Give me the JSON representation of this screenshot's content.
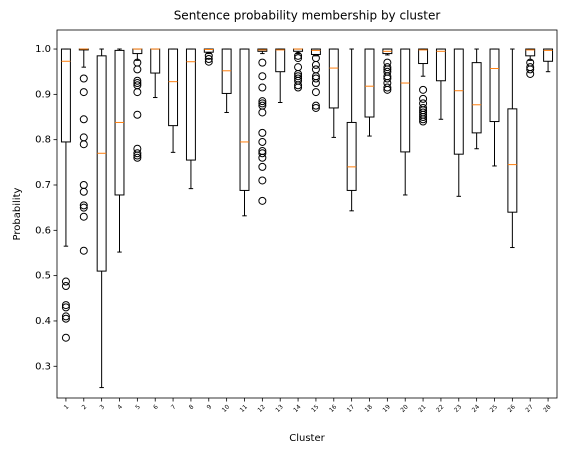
{
  "chart_data": {
    "type": "box",
    "title": "Sentence probability membership by cluster",
    "xlabel": "Cluster",
    "ylabel": "Probability",
    "categories": [
      "1",
      "2",
      "3",
      "4",
      "5",
      "6",
      "7",
      "8",
      "9",
      "10",
      "11",
      "12",
      "13",
      "14",
      "15",
      "16",
      "17",
      "18",
      "19",
      "20",
      "21",
      "22",
      "23",
      "24",
      "25",
      "26",
      "27",
      "28"
    ],
    "boxes": [
      {
        "whislo": 0.565,
        "q1": 0.795,
        "med": 0.973,
        "q3": 1.0,
        "whishi": 1.0,
        "fliers": [
          0.487,
          0.477,
          0.435,
          0.43,
          0.41,
          0.405,
          0.363
        ]
      },
      {
        "whislo": 0.96,
        "q1": 0.998,
        "med": 1.0,
        "q3": 1.0,
        "whishi": 1.0,
        "fliers": [
          0.935,
          0.905,
          0.845,
          0.805,
          0.79,
          0.7,
          0.685,
          0.655,
          0.65,
          0.63,
          0.555
        ]
      },
      {
        "whislo": 0.253,
        "q1": 0.51,
        "med": 0.77,
        "q3": 0.985,
        "whishi": 1.0,
        "fliers": []
      },
      {
        "whislo": 0.552,
        "q1": 0.678,
        "med": 0.838,
        "q3": 0.997,
        "whishi": 1.0,
        "fliers": []
      },
      {
        "whislo": 0.975,
        "q1": 0.99,
        "med": 1.0,
        "q3": 1.0,
        "whishi": 1.0,
        "fliers": [
          0.97,
          0.955,
          0.93,
          0.925,
          0.92,
          0.905,
          0.855,
          0.78,
          0.77,
          0.765,
          0.76
        ]
      },
      {
        "whislo": 0.893,
        "q1": 0.947,
        "med": 1.0,
        "q3": 1.0,
        "whishi": 1.0,
        "fliers": []
      },
      {
        "whislo": 0.772,
        "q1": 0.831,
        "med": 0.928,
        "q3": 1.0,
        "whishi": 1.0,
        "fliers": []
      },
      {
        "whislo": 0.692,
        "q1": 0.755,
        "med": 0.972,
        "q3": 1.0,
        "whishi": 1.0,
        "fliers": []
      },
      {
        "whislo": 0.99,
        "q1": 0.993,
        "med": 0.999,
        "q3": 1.0,
        "whishi": 1.0,
        "fliers": [
          0.985,
          0.978,
          0.972
        ]
      },
      {
        "whislo": 0.86,
        "q1": 0.902,
        "med": 0.952,
        "q3": 1.0,
        "whishi": 1.0,
        "fliers": []
      },
      {
        "whislo": 0.632,
        "q1": 0.688,
        "med": 0.795,
        "q3": 1.0,
        "whishi": 1.0,
        "fliers": []
      },
      {
        "whislo": 0.99,
        "q1": 0.995,
        "med": 0.998,
        "q3": 1.0,
        "whishi": 1.0,
        "fliers": [
          0.97,
          0.94,
          0.915,
          0.885,
          0.88,
          0.875,
          0.86,
          0.815,
          0.795,
          0.775,
          0.77,
          0.76,
          0.74,
          0.71,
          0.665
        ]
      },
      {
        "whislo": 0.882,
        "q1": 0.95,
        "med": 0.998,
        "q3": 1.0,
        "whishi": 1.0,
        "fliers": []
      },
      {
        "whislo": 0.99,
        "q1": 0.995,
        "med": 1.0,
        "q3": 1.0,
        "whishi": 1.0,
        "fliers": [
          0.985,
          0.98,
          0.96,
          0.945,
          0.94,
          0.935,
          0.93,
          0.92,
          0.915
        ]
      },
      {
        "whislo": 0.985,
        "q1": 0.988,
        "med": 0.997,
        "q3": 1.0,
        "whishi": 1.0,
        "fliers": [
          0.98,
          0.965,
          0.955,
          0.94,
          0.935,
          0.925,
          0.905,
          0.875,
          0.87
        ]
      },
      {
        "whislo": 0.805,
        "q1": 0.87,
        "med": 0.958,
        "q3": 1.0,
        "whishi": 1.0,
        "fliers": []
      },
      {
        "whislo": 0.643,
        "q1": 0.688,
        "med": 0.74,
        "q3": 0.838,
        "whishi": 1.0,
        "fliers": []
      },
      {
        "whislo": 0.808,
        "q1": 0.85,
        "med": 0.918,
        "q3": 1.0,
        "whishi": 1.0,
        "fliers": []
      },
      {
        "whislo": 0.987,
        "q1": 0.99,
        "med": 0.995,
        "q3": 1.0,
        "whishi": 1.0,
        "fliers": [
          0.97,
          0.96,
          0.955,
          0.95,
          0.94,
          0.935,
          0.925,
          0.915,
          0.91
        ]
      },
      {
        "whislo": 0.678,
        "q1": 0.773,
        "med": 0.925,
        "q3": 1.0,
        "whishi": 1.0,
        "fliers": []
      },
      {
        "whislo": 0.94,
        "q1": 0.968,
        "med": 0.998,
        "q3": 1.0,
        "whishi": 1.0,
        "fliers": [
          0.91,
          0.89,
          0.88,
          0.87,
          0.865,
          0.86,
          0.855,
          0.85,
          0.845,
          0.84
        ]
      },
      {
        "whislo": 0.845,
        "q1": 0.93,
        "med": 0.995,
        "q3": 1.0,
        "whishi": 1.0,
        "fliers": []
      },
      {
        "whislo": 0.675,
        "q1": 0.768,
        "med": 0.908,
        "q3": 1.0,
        "whishi": 1.0,
        "fliers": []
      },
      {
        "whislo": 0.78,
        "q1": 0.815,
        "med": 0.877,
        "q3": 0.97,
        "whishi": 1.0,
        "fliers": []
      },
      {
        "whislo": 0.742,
        "q1": 0.84,
        "med": 0.957,
        "q3": 1.0,
        "whishi": 1.0,
        "fliers": []
      },
      {
        "whislo": 0.562,
        "q1": 0.64,
        "med": 0.745,
        "q3": 0.868,
        "whishi": 1.0,
        "fliers": []
      },
      {
        "whislo": 0.975,
        "q1": 0.985,
        "med": 0.998,
        "q3": 1.0,
        "whishi": 1.0,
        "fliers": [
          0.97,
          0.96,
          0.955,
          0.945
        ]
      },
      {
        "whislo": 0.95,
        "q1": 0.973,
        "med": 0.997,
        "q3": 1.0,
        "whishi": 1.0,
        "fliers": []
      }
    ],
    "box_color": "#000000",
    "median_color": "#ff7f0e",
    "ylim": [
      0.23,
      1.042
    ],
    "yticks": [
      0.3,
      0.4,
      0.5,
      0.6,
      0.7,
      0.8,
      0.9,
      {
        "value": 1.0,
        "label": "1.0"
      }
    ],
    "grid": false
  }
}
